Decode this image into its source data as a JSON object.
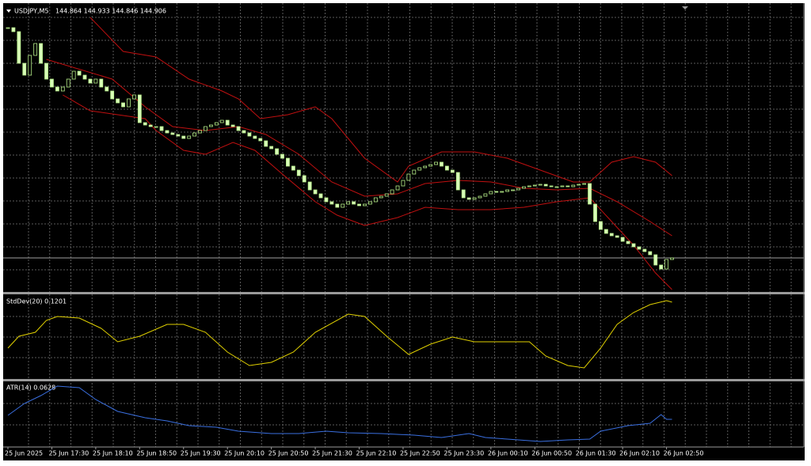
{
  "chart_data": [
    {
      "type": "candlestick",
      "title": "USDJPY,M5",
      "header_values": "144.864 144.933 144.846 144.906",
      "ylim": [
        144.822,
        145.542
      ],
      "up_color": "#000000",
      "down_color": "#d8ffb8",
      "outline": "#b8f08a",
      "bid_line": 144.906,
      "categories": [
        "25 Jun 2025",
        null,
        null,
        null,
        null,
        null,
        null,
        null,
        "25 Jun 17:30",
        null,
        null,
        null,
        null,
        null,
        null,
        null,
        "25 Jun 18:10",
        null,
        null,
        null,
        null,
        null,
        null,
        null,
        "25 Jun 18:50",
        null,
        null,
        null,
        null,
        null,
        null,
        null,
        "25 Jun 19:30",
        null,
        null,
        null,
        null,
        null,
        null,
        null,
        "25 Jun 20:10",
        null,
        null,
        null,
        null,
        null,
        null,
        null,
        "25 Jun 20:50",
        null,
        null,
        null,
        null,
        null,
        null,
        null,
        "25 Jun 21:30",
        null,
        null,
        null,
        null,
        null,
        null,
        null,
        "25 Jun 22:10",
        null,
        null,
        null,
        null,
        null,
        null,
        null,
        "25 Jun 22:50",
        null,
        null,
        null,
        null,
        null,
        null,
        null,
        "25 Jun 23:30",
        null,
        null,
        null,
        null,
        null,
        null,
        null,
        "26 Jun 00:10",
        null,
        null,
        null,
        null,
        null,
        null,
        null,
        "26 Jun 00:50",
        null,
        null,
        null,
        null,
        null,
        null,
        null,
        "26 Jun 01:30",
        null,
        null,
        null,
        null,
        null,
        null,
        null,
        "26 Jun 02:10",
        null,
        null,
        null,
        null,
        null,
        null,
        null,
        "26 Jun 02:50",
        null
      ],
      "close": [
        145.488,
        145.478,
        145.398,
        145.368,
        145.418,
        145.448,
        145.398,
        145.358,
        145.338,
        145.328,
        145.338,
        145.358,
        145.378,
        145.368,
        145.358,
        145.348,
        145.358,
        145.338,
        145.328,
        145.308,
        145.298,
        145.288,
        145.308,
        145.318,
        145.248,
        145.242,
        145.238,
        145.238,
        145.228,
        145.222,
        145.218,
        145.214,
        145.208,
        145.214,
        145.222,
        145.228,
        145.238,
        145.242,
        145.248,
        145.254,
        145.242,
        145.238,
        145.228,
        145.222,
        145.214,
        145.208,
        145.202,
        145.188,
        145.182,
        145.168,
        145.158,
        145.138,
        145.128,
        145.114,
        145.098,
        145.078,
        145.068,
        145.058,
        145.048,
        145.042,
        145.034,
        145.042,
        145.048,
        145.042,
        145.038,
        145.042,
        145.048,
        145.058,
        145.062,
        145.068,
        145.078,
        145.088,
        145.102,
        145.118,
        145.128,
        145.134,
        145.138,
        145.142,
        145.148,
        145.138,
        145.128,
        145.122,
        145.078,
        145.058,
        145.054,
        145.058,
        145.062,
        145.068,
        145.074,
        145.072,
        145.074,
        145.078,
        145.078,
        145.082,
        145.086,
        145.088,
        145.09,
        145.092,
        145.088,
        145.086,
        145.086,
        145.088,
        145.086,
        145.09,
        145.092,
        145.094,
        145.042,
        144.998,
        144.978,
        144.968,
        144.962,
        144.958,
        144.948,
        144.942,
        144.934,
        144.928,
        144.922,
        144.914,
        144.888,
        144.878,
        144.902,
        144.906
      ],
      "series": [
        {
          "color": "#c01010",
          "x": [
            15,
            21,
            27,
            33,
            39,
            42,
            46,
            51,
            56,
            59,
            65,
            71,
            73,
            79,
            85,
            91,
            97,
            103,
            106,
            110,
            114,
            118,
            121
          ],
          "values": [
            145.514,
            145.428,
            145.414,
            145.358,
            145.328,
            145.308,
            145.258,
            145.268,
            145.288,
            145.258,
            145.158,
            145.098,
            145.138,
            145.174,
            145.174,
            145.158,
            145.128,
            145.098,
            145.098,
            145.148,
            145.162,
            145.148,
            145.114
          ]
        },
        {
          "color": "#c01010",
          "x": [
            7,
            19,
            25,
            30,
            36,
            42,
            47,
            53,
            59,
            65,
            71,
            76,
            82,
            88,
            94,
            100,
            106,
            111,
            117,
            121
          ],
          "values": [
            145.408,
            145.358,
            145.288,
            145.238,
            145.228,
            145.238,
            145.218,
            145.168,
            145.098,
            145.062,
            145.068,
            145.094,
            145.102,
            145.098,
            145.082,
            145.078,
            145.082,
            145.048,
            144.998,
            144.962
          ]
        },
        {
          "color": "#c01010",
          "x": [
            10,
            15,
            20,
            25,
            27,
            32,
            36,
            41,
            45,
            50,
            56,
            60,
            65,
            71,
            76,
            82,
            88,
            94,
            100,
            106,
            110,
            114,
            118,
            121
          ],
          "values": [
            145.318,
            145.278,
            145.268,
            145.258,
            145.228,
            145.178,
            145.168,
            145.198,
            145.178,
            145.118,
            145.048,
            145.014,
            144.988,
            145.008,
            145.034,
            145.028,
            145.028,
            145.034,
            145.048,
            145.058,
            144.998,
            144.938,
            144.868,
            144.826
          ]
        }
      ]
    },
    {
      "type": "line",
      "title": "StdDev(20) 0.1201",
      "color": "#e0d000",
      "ylim": [
        0,
        0.13
      ],
      "x": [
        0,
        2,
        5,
        7,
        9,
        13,
        17,
        20,
        24,
        29,
        32,
        36,
        40,
        44,
        48,
        52,
        56,
        62,
        65,
        69,
        73,
        77,
        81,
        85,
        91,
        95,
        98,
        102,
        105,
        108,
        111,
        114,
        117,
        120,
        121
      ],
      "values": [
        0.0475,
        0.0663,
        0.0725,
        0.0913,
        0.0975,
        0.095,
        0.0788,
        0.0575,
        0.0663,
        0.085,
        0.085,
        0.0725,
        0.0413,
        0.02,
        0.025,
        0.0413,
        0.0725,
        0.1013,
        0.0975,
        0.0663,
        0.0375,
        0.0538,
        0.065,
        0.0575,
        0.0575,
        0.0575,
        0.035,
        0.02,
        0.0163,
        0.0475,
        0.085,
        0.1038,
        0.1163,
        0.1225,
        0.1201
      ]
    },
    {
      "type": "line",
      "title": "ATR(14) 0.0628",
      "color": "#3a6fe0",
      "ylim": [
        0,
        0.1548
      ],
      "x": [
        0,
        3,
        6,
        9,
        13,
        16,
        20,
        25,
        29,
        33,
        38,
        42,
        48,
        53,
        58,
        62,
        68,
        74,
        79,
        84,
        87,
        91,
        97,
        102,
        106,
        108,
        113,
        117,
        119,
        120,
        121
      ],
      "values": [
        0.0725,
        0.1019,
        0.1215,
        0.145,
        0.1411,
        0.1117,
        0.0823,
        0.0666,
        0.0588,
        0.047,
        0.0431,
        0.0333,
        0.0274,
        0.0274,
        0.0333,
        0.0294,
        0.0274,
        0.0235,
        0.0176,
        0.0274,
        0.0176,
        0.0137,
        0.0078,
        0.0118,
        0.0137,
        0.0333,
        0.047,
        0.0529,
        0.0745,
        0.0628,
        0.0628
      ]
    }
  ]
}
